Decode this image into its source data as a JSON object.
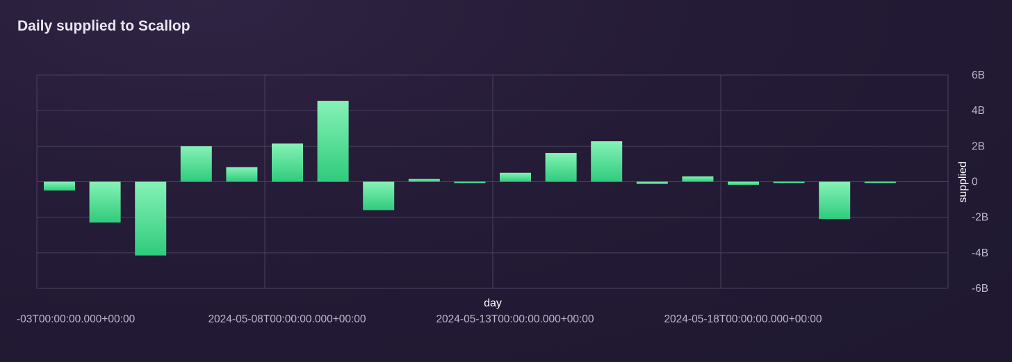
{
  "chart_data": {
    "type": "bar",
    "title": "Daily supplied to Scallop",
    "xlabel": "day",
    "ylabel": "supplied",
    "x": [
      "2024-05-03",
      "2024-05-04",
      "2024-05-05",
      "2024-05-06",
      "2024-05-07",
      "2024-05-08",
      "2024-05-09",
      "2024-05-10",
      "2024-05-11",
      "2024-05-12",
      "2024-05-13",
      "2024-05-14",
      "2024-05-15",
      "2024-05-16",
      "2024-05-17",
      "2024-05-18",
      "2024-05-19",
      "2024-05-20",
      "2024-05-21"
    ],
    "values": [
      -0.5,
      -2.3,
      -4.15,
      2.0,
      0.82,
      2.15,
      4.55,
      -1.6,
      0.15,
      -0.06,
      0.5,
      1.62,
      2.28,
      -0.13,
      0.3,
      -0.18,
      -0.05,
      -2.1,
      -0.03
    ],
    "value_unit": "billions",
    "ylim": [
      -6,
      6
    ],
    "y_ticks": [
      "6B",
      "4B",
      "2B",
      "0",
      "-2B",
      "-4B",
      "-6B"
    ],
    "x_tick_labels": [
      "-03T00:00:00.000+00:00",
      "2024-05-08T00:00:00.000+00:00",
      "2024-05-13T00:00:00.000+00:00",
      "2024-05-18T00:00:00.000+00:00"
    ],
    "y_axis_side": "right",
    "grid": true,
    "colors": {
      "bar_top": "#86f2b6",
      "bar_bottom": "#2fcb7c",
      "grid": "#4a4160"
    }
  }
}
